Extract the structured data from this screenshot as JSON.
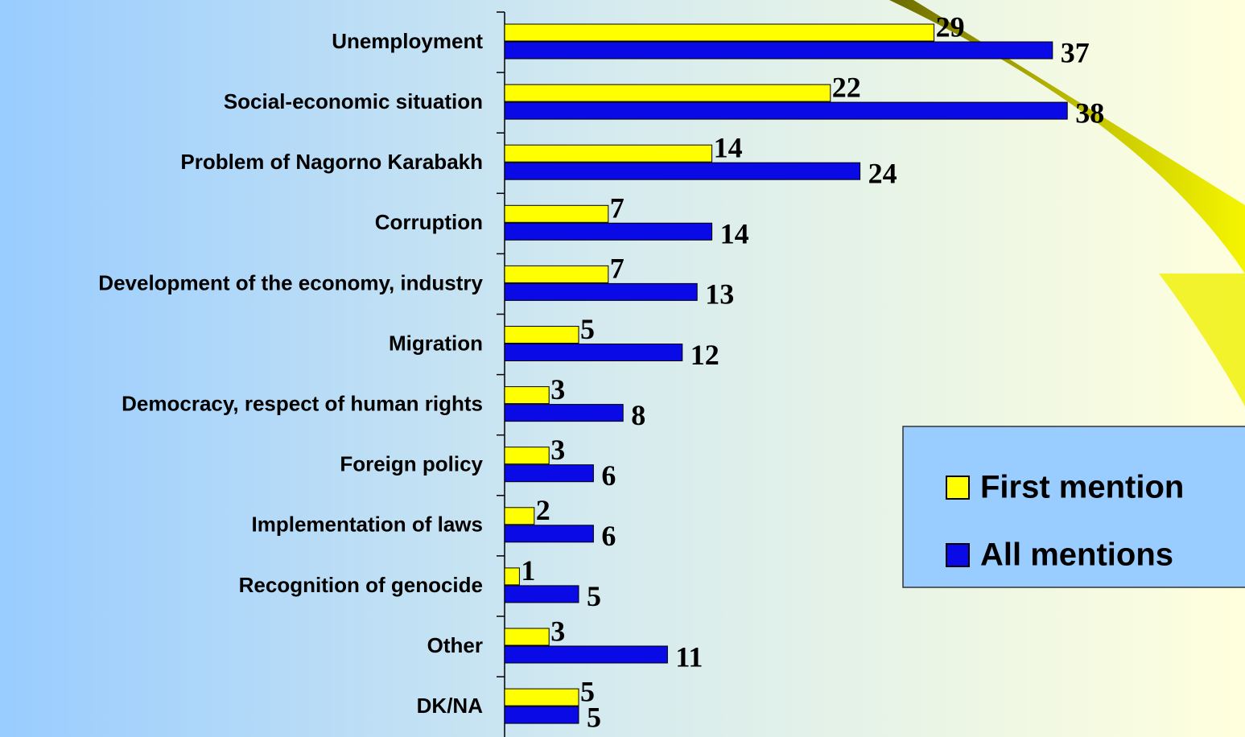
{
  "chart_data": {
    "type": "barh",
    "categories": [
      "Unemployment",
      "Social-economic situation",
      "Problem of Nagorno Karabakh",
      "Corruption",
      "Development of the economy, industry",
      "Migration",
      "Democracy, respect of human rights",
      "Foreign policy",
      "Implementation of laws",
      "Recognition of genocide",
      "Other",
      "DK/NA"
    ],
    "series": [
      {
        "name": "First mention",
        "color": "#ffff00",
        "values": [
          29,
          22,
          14,
          7,
          7,
          5,
          3,
          3,
          2,
          1,
          3,
          5
        ]
      },
      {
        "name": "All mentions",
        "color": "#0a0ae6",
        "values": [
          37,
          38,
          24,
          14,
          13,
          12,
          8,
          6,
          6,
          5,
          11,
          5
        ]
      }
    ],
    "xlim": [
      0,
      50
    ],
    "legend": "right"
  }
}
